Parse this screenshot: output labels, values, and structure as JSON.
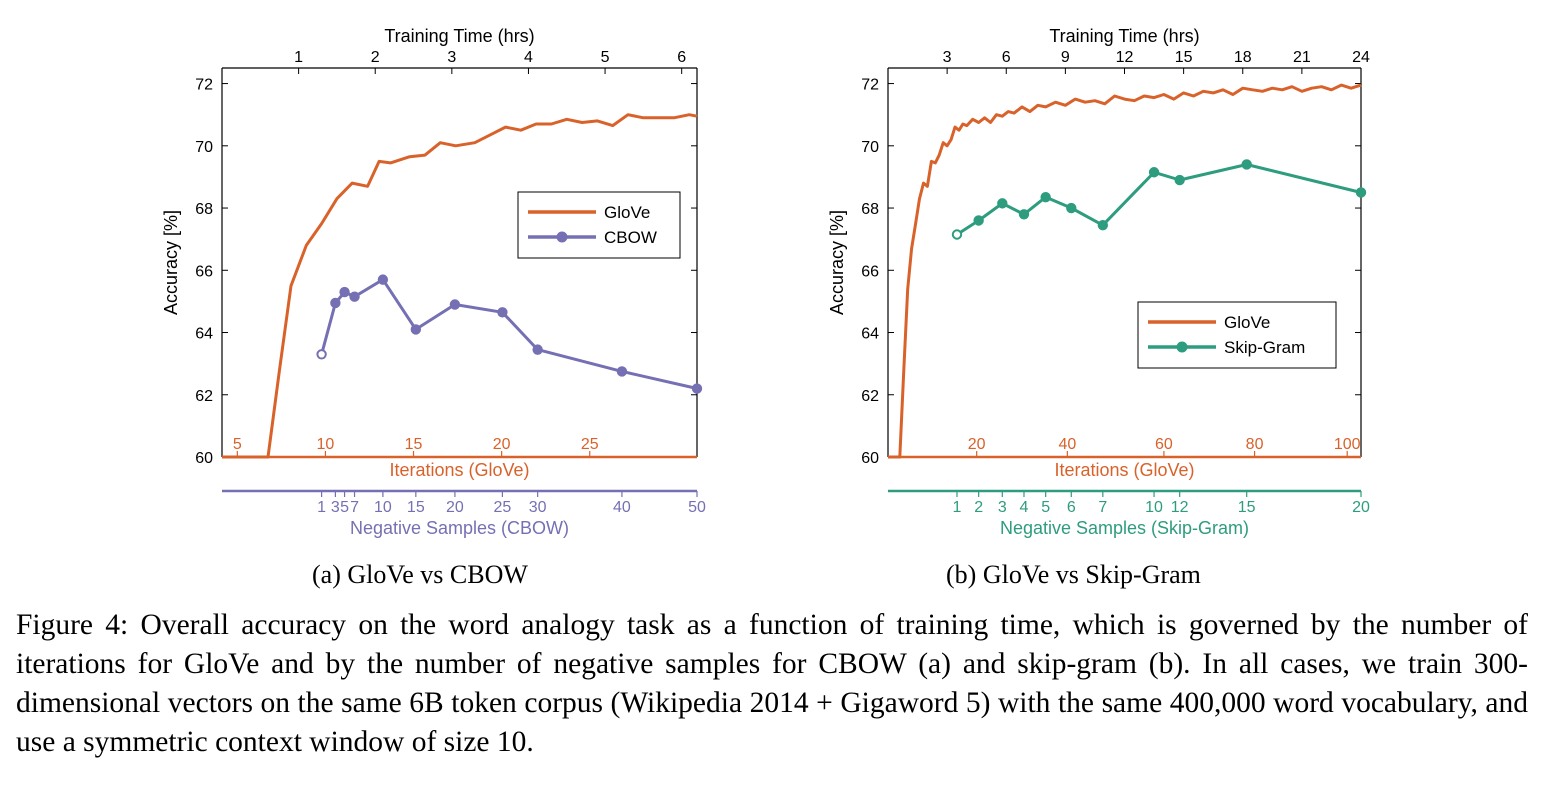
{
  "colors": {
    "glove": "#d9622b",
    "cbow": "#7570b3",
    "skipgram": "#2e9c7e",
    "axis": "#000000"
  },
  "chart_data": [
    {
      "type": "line",
      "subcaption": "(a)  GloVe vs CBOW",
      "ylabel": "Accuracy [%]",
      "ylim": [
        60,
        72.5
      ],
      "yticks": [
        60,
        62,
        64,
        66,
        68,
        70,
        72
      ],
      "top_axis": {
        "label": "Training Time (hrs)",
        "lim": [
          0,
          6.2
        ],
        "ticks": [
          1,
          2,
          3,
          4,
          5,
          6
        ]
      },
      "iter_axis": {
        "label": "Iterations (GloVe)",
        "ticks": [
          {
            "label": "5",
            "t": 0.2
          },
          {
            "label": "10",
            "t": 1.35
          },
          {
            "label": "15",
            "t": 2.5
          },
          {
            "label": "20",
            "t": 3.65
          },
          {
            "label": "25",
            "t": 4.8
          }
        ]
      },
      "neg_axis": {
        "label": "Negative Samples (CBOW)",
        "ticks": [
          {
            "label": "1",
            "t": 1.3
          },
          {
            "label": "3",
            "t": 1.48
          },
          {
            "label": "5",
            "t": 1.6
          },
          {
            "label": "7",
            "t": 1.73
          },
          {
            "label": "10",
            "t": 2.1
          },
          {
            "label": "15",
            "t": 2.53
          },
          {
            "label": "20",
            "t": 3.04
          },
          {
            "label": "25",
            "t": 3.66
          },
          {
            "label": "30",
            "t": 4.12
          },
          {
            "label": "40",
            "t": 5.22
          },
          {
            "label": "50",
            "t": 6.2
          }
        ]
      },
      "legend": {
        "position": "center-right",
        "entries": [
          "GloVe",
          "CBOW"
        ]
      },
      "series": [
        {
          "name": "GloVe",
          "color_key": "glove",
          "markers": false,
          "x": [
            0,
            0.6,
            0.75,
            0.9,
            1.1,
            1.3,
            1.5,
            1.7,
            1.9,
            2.05,
            2.2,
            2.45,
            2.65,
            2.85,
            3.05,
            3.3,
            3.5,
            3.7,
            3.9,
            4.1,
            4.3,
            4.5,
            4.7,
            4.9,
            5.1,
            5.3,
            5.5,
            5.7,
            5.9,
            6.1,
            6.2
          ],
          "y": [
            60,
            60,
            62.8,
            65.5,
            66.8,
            67.5,
            68.3,
            68.8,
            68.7,
            69.5,
            69.45,
            69.65,
            69.7,
            70.1,
            70.0,
            70.1,
            70.35,
            70.6,
            70.5,
            70.7,
            70.7,
            70.85,
            70.75,
            70.8,
            70.65,
            71.0,
            70.9,
            70.9,
            70.9,
            71.0,
            70.95
          ]
        },
        {
          "name": "CBOW",
          "color_key": "cbow",
          "markers": true,
          "x": [
            1.3,
            1.48,
            1.6,
            1.73,
            2.1,
            2.53,
            3.04,
            3.66,
            4.12,
            5.22,
            6.2
          ],
          "y": [
            63.3,
            64.95,
            65.3,
            65.15,
            65.7,
            64.1,
            64.9,
            64.65,
            63.45,
            62.75,
            62.2
          ]
        }
      ]
    },
    {
      "type": "line",
      "subcaption": "(b)  GloVe vs Skip-Gram",
      "ylabel": "Accuracy [%]",
      "ylim": [
        60,
        72.5
      ],
      "yticks": [
        60,
        62,
        64,
        66,
        68,
        70,
        72
      ],
      "top_axis": {
        "label": "Training Time (hrs)",
        "lim": [
          0,
          24
        ],
        "ticks": [
          3,
          6,
          9,
          12,
          15,
          18,
          21,
          24
        ]
      },
      "iter_axis": {
        "label": "Iterations (GloVe)",
        "ticks": [
          {
            "label": "20",
            "t": 4.5
          },
          {
            "label": "40",
            "t": 9.1
          },
          {
            "label": "60",
            "t": 14.0
          },
          {
            "label": "80",
            "t": 18.6
          },
          {
            "label": "100",
            "t": 23.3
          }
        ]
      },
      "neg_axis": {
        "label": "Negative Samples (Skip-Gram)",
        "ticks": [
          {
            "label": "1",
            "t": 3.5
          },
          {
            "label": "2",
            "t": 4.6
          },
          {
            "label": "3",
            "t": 5.8
          },
          {
            "label": "4",
            "t": 6.9
          },
          {
            "label": "5",
            "t": 8.0
          },
          {
            "label": "6",
            "t": 9.3
          },
          {
            "label": "7",
            "t": 10.9
          },
          {
            "label": "10",
            "t": 13.5
          },
          {
            "label": "12",
            "t": 14.8
          },
          {
            "label": "15",
            "t": 18.2
          },
          {
            "label": "20",
            "t": 24
          }
        ]
      },
      "legend": {
        "position": "lower-right",
        "entries": [
          "GloVe",
          "Skip-Gram"
        ]
      },
      "series": [
        {
          "name": "GloVe",
          "color_key": "glove",
          "markers": false,
          "x": [
            0,
            0.6,
            0.8,
            1.0,
            1.2,
            1.4,
            1.6,
            1.8,
            2.0,
            2.2,
            2.4,
            2.6,
            2.8,
            3.0,
            3.2,
            3.4,
            3.6,
            3.8,
            4.0,
            4.3,
            4.6,
            4.9,
            5.2,
            5.5,
            5.8,
            6.1,
            6.4,
            6.8,
            7.2,
            7.6,
            8.0,
            8.5,
            9.0,
            9.5,
            10.0,
            10.5,
            11.0,
            11.5,
            12.0,
            12.5,
            13.0,
            13.5,
            14.0,
            14.5,
            15.0,
            15.5,
            16.0,
            16.5,
            17.0,
            17.5,
            18.0,
            18.5,
            19.0,
            19.5,
            20.0,
            20.5,
            21.0,
            21.5,
            22.0,
            22.5,
            23.0,
            23.5,
            24.0
          ],
          "y": [
            60,
            60,
            62.8,
            65.4,
            66.7,
            67.5,
            68.3,
            68.8,
            68.7,
            69.5,
            69.45,
            69.7,
            70.1,
            70.0,
            70.2,
            70.6,
            70.5,
            70.7,
            70.65,
            70.85,
            70.75,
            70.9,
            70.75,
            71.0,
            70.95,
            71.1,
            71.05,
            71.25,
            71.1,
            71.3,
            71.25,
            71.4,
            71.3,
            71.5,
            71.4,
            71.45,
            71.35,
            71.6,
            71.5,
            71.45,
            71.6,
            71.55,
            71.65,
            71.5,
            71.7,
            71.6,
            71.75,
            71.7,
            71.8,
            71.65,
            71.85,
            71.8,
            71.75,
            71.85,
            71.8,
            71.9,
            71.75,
            71.85,
            71.9,
            71.8,
            71.95,
            71.85,
            71.95
          ]
        },
        {
          "name": "Skip-Gram",
          "color_key": "skipgram",
          "markers": true,
          "x": [
            3.5,
            4.6,
            5.8,
            6.9,
            8.0,
            9.3,
            10.9,
            13.5,
            14.8,
            18.2,
            24
          ],
          "y": [
            67.15,
            67.6,
            68.15,
            67.8,
            68.35,
            68.0,
            67.45,
            69.15,
            68.9,
            69.4,
            68.5
          ]
        }
      ]
    }
  ],
  "caption": "Figure 4: Overall accuracy on the word analogy task as a function of training time, which is governed by the number of iterations for GloVe and by the number of negative samples for CBOW (a) and skip-gram (b).  In all cases, we train 300-dimensional vectors on the same 6B token corpus (Wikipedia 2014 + Gigaword 5) with the same 400,000 word vocabulary, and use a symmetric context window of size 10."
}
